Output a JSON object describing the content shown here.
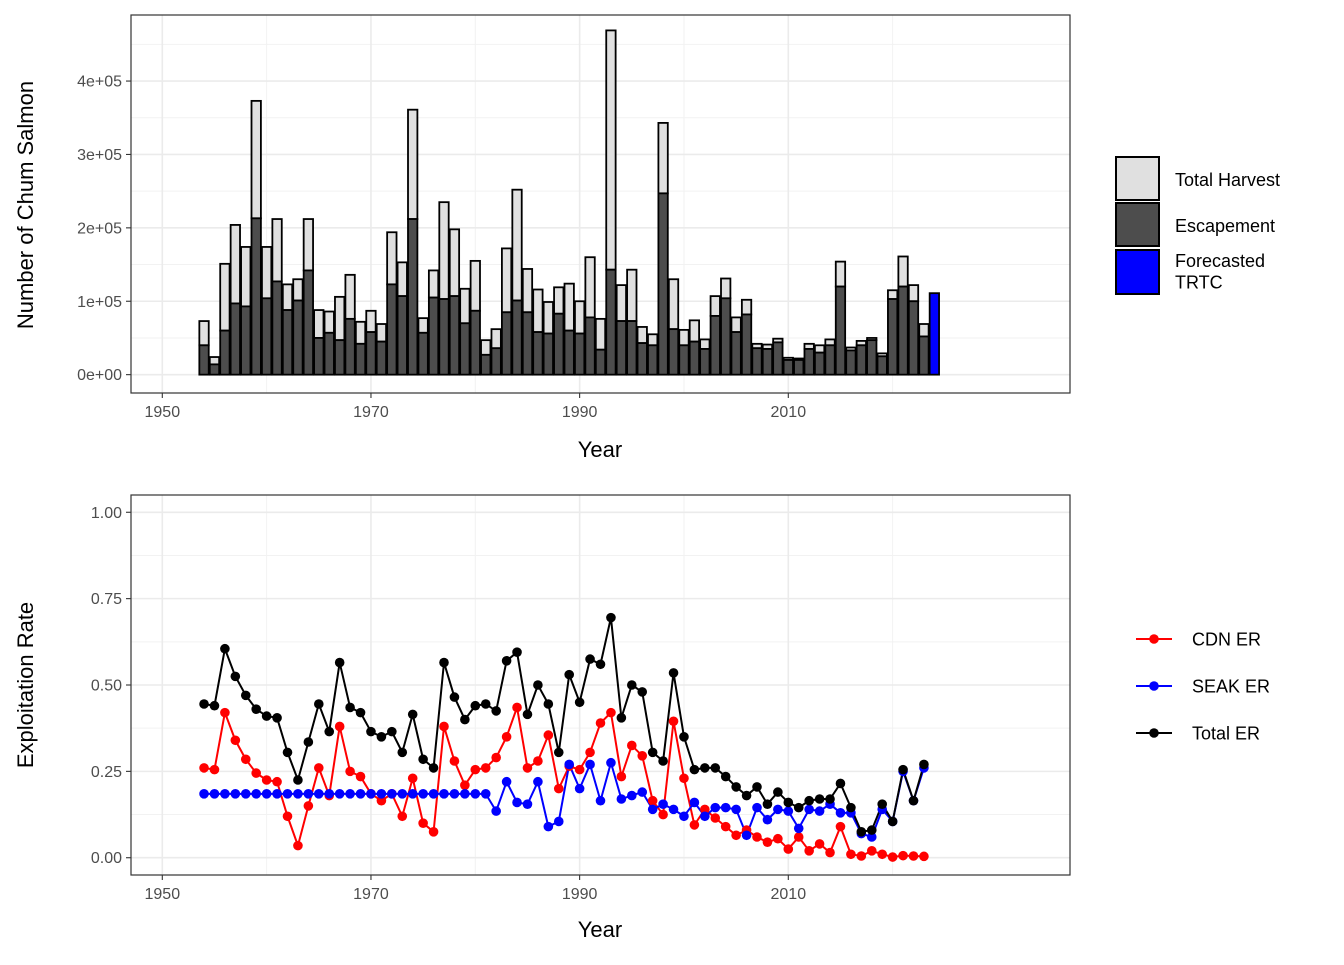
{
  "chart_data": [
    {
      "type": "bar",
      "stacked": true,
      "xlabel": "Year",
      "ylabel": "Number of Chum Salmon",
      "xlim": [
        1947,
        2037
      ],
      "ylim": [
        -25000,
        490000
      ],
      "x_ticks": [
        1950,
        1970,
        1990,
        2010
      ],
      "y_ticks": [
        0,
        100000,
        200000,
        300000,
        400000
      ],
      "y_tick_labels": [
        "0e+00",
        "1e+05",
        "2e+05",
        "3e+05",
        "4e+05"
      ],
      "grid": true,
      "legend_position": "right",
      "legend": [
        {
          "name": "Total Harvest",
          "color": "#e0e0e0"
        },
        {
          "name": "Escapement",
          "color": "#4d4d4d"
        },
        {
          "name": "Forecasted TRTC",
          "color": "#0000ff"
        }
      ],
      "years": [
        1954,
        1955,
        1956,
        1957,
        1958,
        1959,
        1960,
        1961,
        1962,
        1963,
        1964,
        1965,
        1966,
        1967,
        1968,
        1969,
        1970,
        1971,
        1972,
        1973,
        1974,
        1975,
        1976,
        1977,
        1978,
        1979,
        1980,
        1981,
        1982,
        1983,
        1984,
        1985,
        1986,
        1987,
        1988,
        1989,
        1990,
        1991,
        1992,
        1993,
        1994,
        1995,
        1996,
        1997,
        1998,
        1999,
        2000,
        2001,
        2002,
        2003,
        2004,
        2005,
        2006,
        2007,
        2008,
        2009,
        2010,
        2011,
        2012,
        2013,
        2014,
        2015,
        2016,
        2017,
        2018,
        2019,
        2020,
        2021,
        2022,
        2023
      ],
      "series": [
        {
          "name": "Escapement",
          "values": [
            40000,
            14000,
            60000,
            97000,
            93000,
            213000,
            104000,
            127000,
            88000,
            101000,
            142000,
            50000,
            57000,
            47000,
            76000,
            42000,
            58000,
            45000,
            123000,
            107000,
            212000,
            57000,
            105000,
            103000,
            107000,
            70000,
            87000,
            27000,
            36000,
            85000,
            101000,
            85000,
            58000,
            56000,
            83000,
            60000,
            56000,
            78000,
            34000,
            143000,
            73000,
            73000,
            43000,
            40000,
            247000,
            62000,
            40000,
            45000,
            35000,
            80000,
            104000,
            58000,
            82000,
            36000,
            35000,
            44000,
            20000,
            20000,
            35000,
            30000,
            40000,
            120000,
            33000,
            40000,
            47000,
            25000,
            103000,
            120000,
            100000,
            52000
          ]
        },
        {
          "name": "Total Harvest",
          "values": [
            73000,
            24000,
            151000,
            204000,
            174000,
            373000,
            174000,
            212000,
            123000,
            130000,
            212000,
            88000,
            86000,
            106000,
            136000,
            72000,
            87000,
            69000,
            194000,
            153000,
            361000,
            77000,
            142000,
            235000,
            198000,
            117000,
            155000,
            47000,
            62000,
            172000,
            252000,
            144000,
            116000,
            99000,
            119000,
            124000,
            100000,
            160000,
            76000,
            469000,
            122000,
            143000,
            65000,
            55000,
            343000,
            130000,
            61000,
            74000,
            48000,
            107000,
            131000,
            78000,
            102000,
            42000,
            41000,
            49000,
            23000,
            22000,
            42000,
            40000,
            48000,
            154000,
            37000,
            46000,
            50000,
            29000,
            115000,
            161000,
            122000,
            69000
          ]
        },
        {
          "name": "Forecasted TRTC",
          "year": 2024,
          "value": 111000
        }
      ]
    },
    {
      "type": "line",
      "xlabel": "Year",
      "ylabel": "Exploitation Rate",
      "xlim": [
        1947,
        2037
      ],
      "ylim": [
        -0.05,
        1.05
      ],
      "x_ticks": [
        1950,
        1970,
        1990,
        2010
      ],
      "y_ticks": [
        0,
        0.25,
        0.5,
        0.75,
        1.0
      ],
      "y_tick_labels": [
        "0.00",
        "0.25",
        "0.50",
        "0.75",
        "1.00"
      ],
      "grid": true,
      "legend_position": "right",
      "years": [
        1954,
        1955,
        1956,
        1957,
        1958,
        1959,
        1960,
        1961,
        1962,
        1963,
        1964,
        1965,
        1966,
        1967,
        1968,
        1969,
        1970,
        1971,
        1972,
        1973,
        1974,
        1975,
        1976,
        1977,
        1978,
        1979,
        1980,
        1981,
        1982,
        1983,
        1984,
        1985,
        1986,
        1987,
        1988,
        1989,
        1990,
        1991,
        1992,
        1993,
        1994,
        1995,
        1996,
        1997,
        1998,
        1999,
        2000,
        2001,
        2002,
        2003,
        2004,
        2005,
        2006,
        2007,
        2008,
        2009,
        2010,
        2011,
        2012,
        2013,
        2014,
        2015,
        2016,
        2017,
        2018,
        2019,
        2020,
        2021,
        2022,
        2023
      ],
      "series": [
        {
          "name": "CDN ER",
          "color": "#ff0000",
          "values": [
            0.26,
            0.255,
            0.42,
            0.34,
            0.285,
            0.245,
            0.225,
            0.22,
            0.12,
            0.035,
            0.15,
            0.26,
            0.18,
            0.38,
            0.25,
            0.235,
            0.185,
            0.165,
            0.185,
            0.12,
            0.23,
            0.1,
            0.075,
            0.38,
            0.28,
            0.21,
            0.255,
            0.26,
            0.29,
            0.35,
            0.435,
            0.26,
            0.28,
            0.355,
            0.2,
            0.265,
            0.255,
            0.305,
            0.39,
            0.42,
            0.235,
            0.325,
            0.295,
            0.165,
            0.125,
            0.395,
            0.23,
            0.095,
            0.14,
            0.115,
            0.09,
            0.065,
            0.08,
            0.06,
            0.045,
            0.055,
            0.025,
            0.06,
            0.02,
            0.04,
            0.015,
            0.09,
            0.01,
            0.005,
            0.02,
            0.01,
            0.002,
            0.006,
            0.005,
            0.004
          ]
        },
        {
          "name": "SEAK ER",
          "color": "#0000ff",
          "values": [
            0.185,
            0.185,
            0.185,
            0.185,
            0.185,
            0.185,
            0.185,
            0.185,
            0.185,
            0.185,
            0.185,
            0.185,
            0.185,
            0.185,
            0.185,
            0.185,
            0.185,
            0.185,
            0.185,
            0.185,
            0.185,
            0.185,
            0.185,
            0.185,
            0.185,
            0.185,
            0.185,
            0.185,
            0.135,
            0.22,
            0.16,
            0.155,
            0.22,
            0.09,
            0.105,
            0.27,
            0.2,
            0.27,
            0.165,
            0.275,
            0.17,
            0.18,
            0.19,
            0.14,
            0.155,
            0.14,
            0.12,
            0.16,
            0.12,
            0.145,
            0.145,
            0.14,
            0.065,
            0.145,
            0.11,
            0.14,
            0.135,
            0.085,
            0.14,
            0.135,
            0.155,
            0.13,
            0.13,
            0.07,
            0.06,
            0.14,
            0.105,
            0.25,
            0.165,
            0.26
          ]
        },
        {
          "name": "Total ER",
          "color": "#000000",
          "values": [
            0.445,
            0.44,
            0.605,
            0.525,
            0.47,
            0.43,
            0.41,
            0.405,
            0.305,
            0.225,
            0.335,
            0.445,
            0.365,
            0.565,
            0.435,
            0.42,
            0.365,
            0.35,
            0.365,
            0.305,
            0.415,
            0.285,
            0.26,
            0.565,
            0.465,
            0.4,
            0.44,
            0.445,
            0.425,
            0.57,
            0.595,
            0.415,
            0.5,
            0.445,
            0.305,
            0.53,
            0.45,
            0.575,
            0.56,
            0.695,
            0.405,
            0.5,
            0.48,
            0.305,
            0.28,
            0.535,
            0.35,
            0.255,
            0.26,
            0.26,
            0.235,
            0.205,
            0.18,
            0.205,
            0.155,
            0.19,
            0.16,
            0.145,
            0.165,
            0.17,
            0.17,
            0.215,
            0.145,
            0.075,
            0.08,
            0.155,
            0.105,
            0.255,
            0.165,
            0.27
          ]
        }
      ]
    }
  ]
}
